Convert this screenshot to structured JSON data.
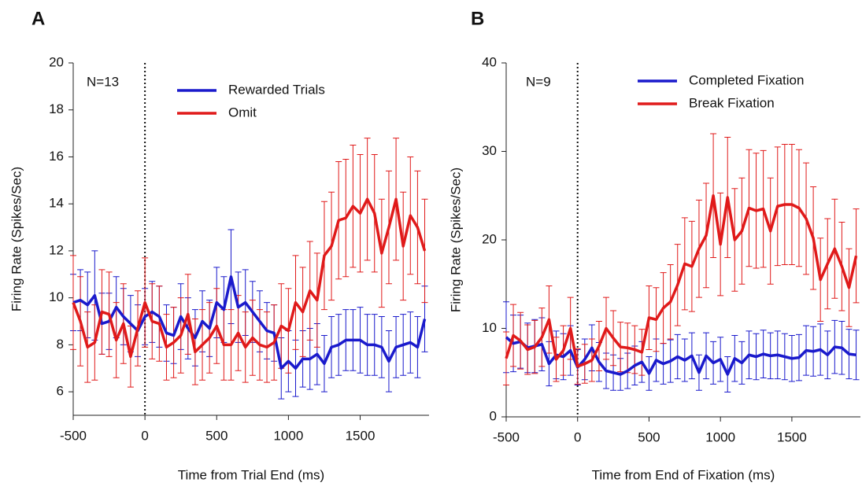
{
  "chart_data": [
    {
      "type": "line",
      "panel_label": "A",
      "annotation": "N=13",
      "xlabel": "Time from Trial End (ms)",
      "ylabel": "Firing Rate (Spikes/Sec)",
      "xlim": [
        -500,
        1980
      ],
      "xticks": [
        -500,
        0,
        500,
        1000,
        1500
      ],
      "ylim": [
        5,
        20
      ],
      "yticks": [
        6,
        8,
        10,
        12,
        14,
        16,
        18,
        20
      ],
      "vline": 0,
      "x": [
        -500,
        -450,
        -400,
        -350,
        -300,
        -250,
        -200,
        -150,
        -100,
        -50,
        0,
        50,
        100,
        150,
        200,
        250,
        300,
        350,
        400,
        450,
        500,
        550,
        600,
        650,
        700,
        750,
        800,
        850,
        900,
        950,
        1000,
        1050,
        1100,
        1150,
        1200,
        1250,
        1300,
        1350,
        1400,
        1450,
        1500,
        1550,
        1600,
        1650,
        1700,
        1750,
        1800,
        1850,
        1900,
        1950
      ],
      "series": [
        {
          "name": "Rewarded Trials",
          "color": "#1a1acc",
          "values": [
            9.8,
            9.9,
            9.7,
            10.1,
            8.9,
            9.0,
            9.6,
            9.2,
            8.9,
            8.6,
            9.2,
            9.4,
            9.2,
            8.5,
            8.4,
            9.2,
            8.7,
            8.3,
            9.0,
            8.7,
            9.8,
            9.5,
            10.9,
            9.6,
            9.8,
            9.4,
            9.0,
            8.6,
            8.5,
            7.0,
            7.3,
            7.0,
            7.4,
            7.4,
            7.6,
            7.2,
            7.9,
            8.0,
            8.2,
            8.2,
            8.2,
            8.0,
            8.0,
            7.9,
            7.3,
            7.9,
            8.0,
            8.1,
            7.9,
            9.1
          ],
          "errors": [
            1.2,
            1.3,
            1.4,
            1.9,
            1.3,
            1.2,
            1.3,
            1.2,
            1.2,
            1.1,
            1.2,
            1.3,
            1.3,
            1.2,
            1.2,
            1.4,
            1.3,
            1.2,
            1.3,
            1.2,
            1.5,
            1.4,
            2.0,
            1.5,
            1.4,
            1.3,
            1.3,
            1.2,
            1.2,
            1.3,
            1.3,
            1.2,
            1.2,
            1.3,
            1.3,
            1.2,
            1.3,
            1.3,
            1.3,
            1.3,
            1.4,
            1.3,
            1.3,
            1.3,
            1.3,
            1.3,
            1.3,
            1.3,
            1.3,
            1.4
          ]
        },
        {
          "name": "Omit",
          "color": "#e01a1a",
          "values": [
            9.8,
            9.0,
            7.9,
            8.1,
            9.4,
            9.3,
            8.2,
            8.9,
            7.5,
            8.7,
            9.8,
            9.0,
            8.9,
            7.9,
            8.1,
            8.4,
            9.3,
            7.7,
            8.0,
            8.3,
            8.8,
            8.0,
            8.0,
            8.5,
            7.9,
            8.3,
            8.0,
            7.9,
            8.1,
            8.8,
            8.6,
            9.8,
            9.4,
            10.3,
            9.9,
            11.8,
            12.2,
            13.3,
            13.4,
            13.9,
            13.6,
            14.2,
            13.6,
            11.9,
            13.0,
            14.2,
            12.2,
            13.5,
            13.0,
            12.0
          ],
          "errors": [
            2.0,
            1.9,
            1.5,
            1.6,
            1.8,
            1.8,
            1.6,
            1.7,
            1.3,
            1.6,
            1.9,
            1.6,
            1.6,
            1.4,
            1.5,
            1.6,
            1.7,
            1.4,
            1.5,
            1.5,
            1.6,
            1.5,
            1.5,
            1.6,
            1.5,
            1.6,
            1.5,
            1.5,
            1.6,
            1.8,
            1.8,
            2.0,
            1.9,
            2.1,
            2.0,
            2.3,
            2.3,
            2.5,
            2.5,
            2.6,
            2.5,
            2.6,
            2.5,
            2.3,
            2.4,
            2.6,
            2.3,
            2.5,
            2.4,
            2.2
          ]
        }
      ]
    },
    {
      "type": "line",
      "panel_label": "B",
      "annotation": "N=9",
      "xlabel": "Time from End of Fixation (ms)",
      "ylabel": "Firing Rate (Spikes/Sec)",
      "xlim": [
        -500,
        1980
      ],
      "xticks": [
        -500,
        0,
        500,
        1000,
        1500
      ],
      "ylim": [
        0,
        40
      ],
      "yticks": [
        0,
        10,
        20,
        30,
        40
      ],
      "vline": 0,
      "x": [
        -500,
        -450,
        -400,
        -350,
        -300,
        -250,
        -200,
        -150,
        -100,
        -50,
        0,
        50,
        100,
        150,
        200,
        250,
        300,
        350,
        400,
        450,
        500,
        550,
        600,
        650,
        700,
        750,
        800,
        850,
        900,
        950,
        1000,
        1050,
        1100,
        1150,
        1200,
        1250,
        1300,
        1350,
        1400,
        1450,
        1500,
        1550,
        1600,
        1650,
        1700,
        1750,
        1800,
        1850,
        1900,
        1950
      ],
      "series": [
        {
          "name": "Completed Fixation",
          "color": "#1a1acc",
          "values": [
            9.0,
            8.3,
            8.5,
            7.8,
            8.0,
            8.2,
            6.0,
            7.0,
            6.8,
            7.5,
            5.6,
            6.5,
            7.8,
            6.2,
            5.2,
            5.0,
            4.8,
            5.2,
            5.8,
            6.2,
            4.9,
            6.4,
            6.0,
            6.3,
            6.8,
            6.4,
            6.9,
            5.0,
            6.9,
            6.1,
            6.5,
            4.8,
            6.6,
            6.1,
            7.0,
            6.8,
            7.1,
            6.9,
            7.0,
            6.8,
            6.6,
            6.7,
            7.5,
            7.4,
            7.6,
            7.0,
            7.9,
            7.8,
            7.1,
            7.0
          ],
          "errors": [
            4.0,
            3.2,
            3.0,
            2.8,
            3.0,
            3.0,
            2.5,
            2.7,
            2.6,
            2.8,
            2.0,
            2.3,
            2.6,
            2.2,
            2.0,
            2.0,
            1.8,
            2.0,
            2.2,
            2.3,
            1.9,
            2.4,
            2.3,
            2.4,
            2.5,
            2.4,
            2.6,
            2.0,
            2.6,
            2.4,
            2.5,
            2.0,
            2.6,
            2.4,
            2.7,
            2.6,
            2.7,
            2.6,
            2.7,
            2.6,
            2.6,
            2.6,
            2.8,
            2.8,
            2.9,
            2.7,
            3.0,
            3.0,
            2.8,
            2.8
          ]
        },
        {
          "name": "Break Fixation",
          "color": "#e01a1a",
          "values": [
            6.6,
            9.2,
            8.6,
            7.6,
            7.9,
            9.0,
            11.0,
            6.5,
            7.5,
            10.0,
            5.7,
            6.0,
            6.4,
            8.0,
            10.0,
            8.9,
            7.9,
            7.8,
            7.6,
            7.3,
            11.2,
            11.0,
            12.3,
            13.0,
            14.9,
            17.3,
            17.0,
            19.0,
            20.5,
            25.0,
            19.5,
            24.8,
            20.0,
            21.0,
            23.6,
            23.3,
            23.5,
            21.0,
            23.8,
            24.0,
            24.0,
            23.6,
            22.4,
            20.2,
            15.5,
            17.3,
            19.0,
            17.0,
            14.6,
            18.2
          ],
          "errors": [
            3.0,
            3.5,
            3.2,
            2.8,
            3.0,
            3.3,
            3.8,
            2.5,
            2.8,
            3.5,
            2.0,
            2.2,
            2.4,
            2.8,
            3.5,
            3.1,
            2.8,
            2.8,
            2.7,
            2.6,
            3.6,
            3.6,
            4.0,
            4.2,
            4.6,
            5.2,
            5.1,
            5.5,
            5.9,
            7.0,
            5.8,
            6.8,
            5.8,
            6.0,
            6.6,
            6.5,
            6.6,
            6.0,
            6.7,
            6.8,
            6.8,
            6.6,
            6.3,
            5.8,
            4.7,
            5.1,
            5.6,
            5.0,
            4.4,
            5.3
          ]
        }
      ]
    }
  ]
}
